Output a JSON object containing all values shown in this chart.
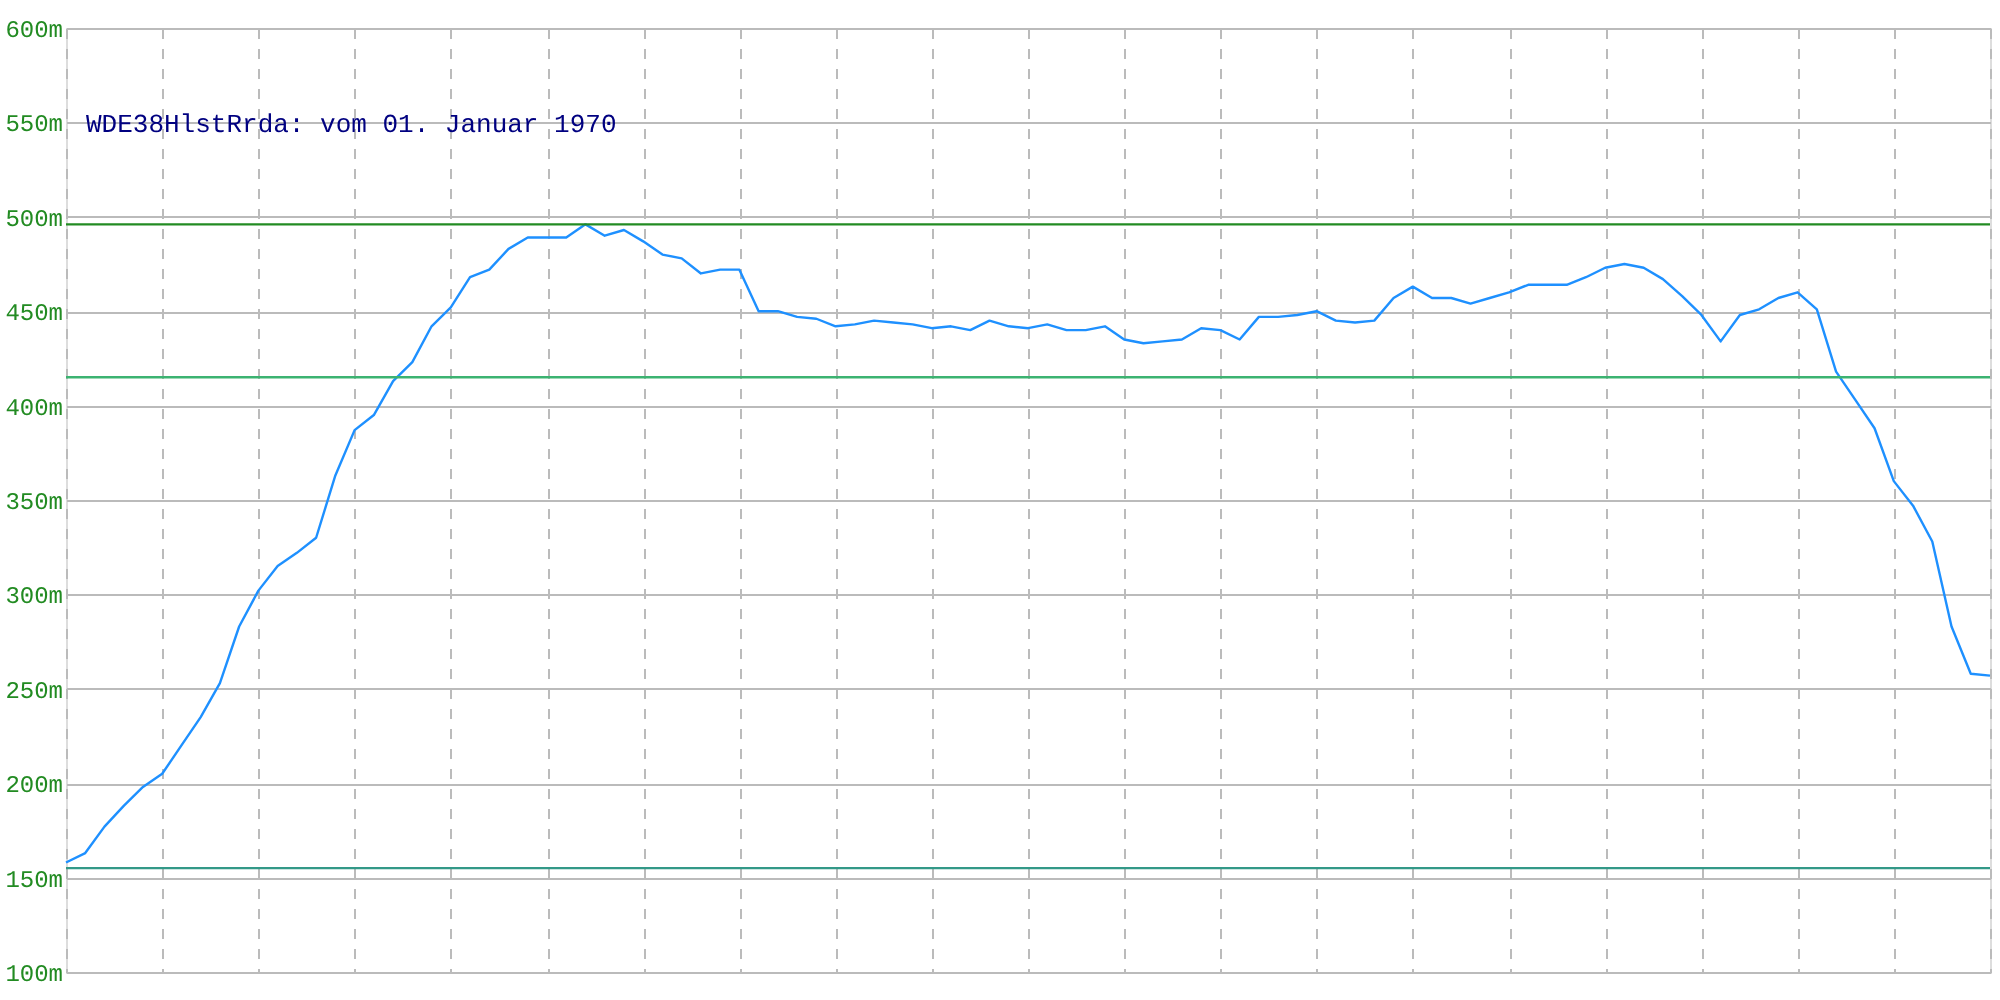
{
  "chart_data": {
    "type": "line",
    "title": "WDE38HlstRrda: vom 01. Januar 1970",
    "categories": [
      null,
      null,
      null,
      null,
      null,
      null,
      null,
      null,
      null,
      null,
      null,
      null,
      null,
      null,
      null,
      null,
      null,
      null,
      null,
      null,
      null,
      null,
      null,
      null,
      null,
      null,
      null,
      null,
      null,
      null,
      null,
      null,
      null,
      null,
      null,
      null,
      null,
      null,
      null,
      null,
      null,
      null,
      null,
      null,
      null,
      null,
      null,
      null,
      null,
      null,
      null,
      null,
      null,
      null,
      null,
      null,
      null,
      null,
      null,
      null,
      null,
      null,
      null,
      null,
      null,
      null,
      null,
      null,
      null,
      null,
      null,
      null,
      null,
      null,
      null,
      null,
      null,
      null,
      null,
      null,
      null,
      null,
      null,
      null,
      null,
      null,
      null,
      null,
      null,
      null,
      null,
      null,
      null,
      null,
      null,
      null,
      null,
      null,
      null,
      null,
      null
    ],
    "series": [
      {
        "color": "#1e90ff",
        "values": [
          158,
          163,
          177,
          188,
          198,
          205,
          220,
          235,
          253,
          283,
          302,
          315,
          322,
          330,
          363,
          387,
          395,
          413,
          423,
          442,
          452,
          468,
          472,
          483,
          489,
          489,
          489,
          496,
          490,
          493,
          487,
          480,
          478,
          470,
          472,
          472,
          450,
          450,
          447,
          446,
          442,
          443,
          445,
          444,
          443,
          441,
          442,
          440,
          445,
          442,
          441,
          443,
          440,
          440,
          442,
          435,
          433,
          434,
          435,
          441,
          440,
          435,
          447,
          447,
          448,
          450,
          445,
          444,
          445,
          457,
          463,
          457,
          457,
          454,
          457,
          460,
          464,
          464,
          464,
          468,
          473,
          475,
          473,
          467,
          458,
          448,
          434,
          448,
          451,
          457,
          460,
          451,
          418,
          403,
          388,
          360,
          347,
          328,
          283,
          258,
          257
        ]
      }
    ],
    "ylim": [
      100,
      600
    ],
    "yticks": [
      {
        "value": 100,
        "label": "100m"
      },
      {
        "value": 150,
        "label": "150m"
      },
      {
        "value": 200,
        "label": "200m"
      },
      {
        "value": 250,
        "label": "250m"
      },
      {
        "value": 300,
        "label": "300m"
      },
      {
        "value": 350,
        "label": "350m"
      },
      {
        "value": 400,
        "label": "400m"
      },
      {
        "value": 450,
        "label": "450m"
      },
      {
        "value": 500,
        "label": "500m"
      },
      {
        "value": 550,
        "label": "550m"
      },
      {
        "value": 600,
        "label": "600m"
      }
    ],
    "tick_labels": "y",
    "grid": true,
    "marker": "none",
    "line_style": "solid",
    "ref_lines": [
      {
        "axis": "y",
        "value": 496,
        "color": "#228b22"
      },
      {
        "axis": "y",
        "value": 415,
        "color": "#3cb371"
      },
      {
        "axis": "y",
        "value": 155,
        "color": "#339988"
      }
    ]
  }
}
